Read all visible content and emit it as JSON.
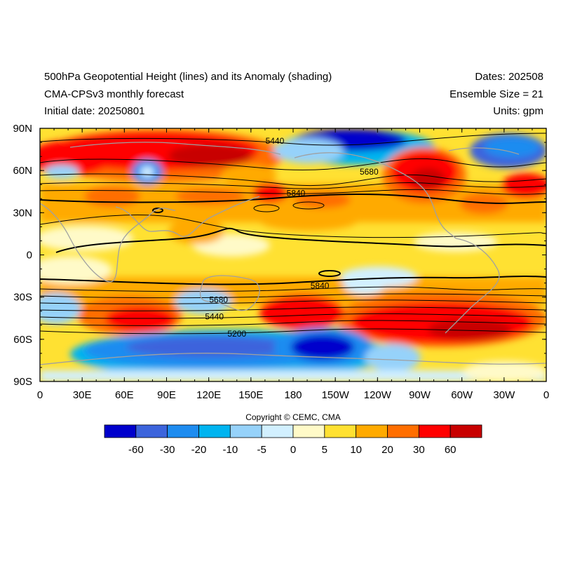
{
  "header": {
    "title_left": [
      "500hPa Geopotential Height (lines) and its Anomaly (shading)",
      "CMA-CPSv3 monthly forecast",
      "Initial date: 20250801"
    ],
    "title_right": [
      "Dates: 202508",
      "Ensemble Size = 21",
      "Units: gpm"
    ]
  },
  "map": {
    "lat_labels": [
      "90N",
      "60N",
      "30N",
      "0",
      "30S",
      "60S",
      "90S"
    ],
    "lon_labels": [
      "0",
      "30E",
      "60E",
      "90E",
      "120E",
      "150E",
      "180",
      "150W",
      "120W",
      "90W",
      "60W",
      "30W",
      "0"
    ],
    "contour_labels": [
      {
        "text": "5440",
        "lon": 167,
        "lat": 81
      },
      {
        "text": "5680",
        "lon": 234,
        "lat": 59
      },
      {
        "text": "5840",
        "lon": 182,
        "lat": 44
      },
      {
        "text": "5840",
        "lon": 199,
        "lat": -22
      },
      {
        "text": "5680",
        "lon": 127,
        "lat": -32
      },
      {
        "text": "5440",
        "lon": 124,
        "lat": -44
      },
      {
        "text": "5200",
        "lon": 140,
        "lat": -56
      }
    ]
  },
  "colorbar": {
    "colors": [
      "#0000cc",
      "#3c64dc",
      "#1e8cf0",
      "#00b4f0",
      "#96d2fa",
      "#d2f0ff",
      "#fffac8",
      "#ffe132",
      "#ffaa00",
      "#ff6e00",
      "#ff0000",
      "#c80000"
    ],
    "labels": [
      "-60",
      "-30",
      "-20",
      "-10",
      "-5",
      "0",
      "5",
      "10",
      "20",
      "30",
      "60"
    ]
  },
  "copyright": "Copyright © CEMC, CMA"
}
